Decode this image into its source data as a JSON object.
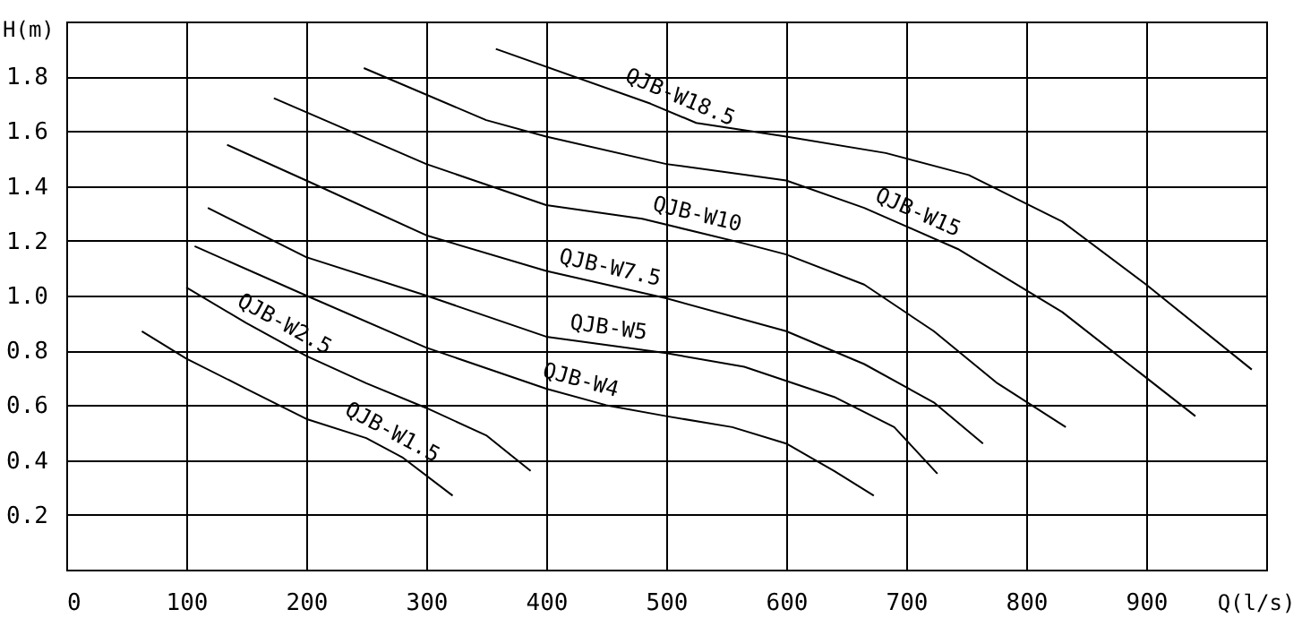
{
  "chart_data": {
    "type": "line",
    "xlabel": "Q(l/s)",
    "ylabel": "H(m)",
    "xlim": [
      0,
      1000
    ],
    "xticks": [
      0,
      100,
      200,
      300,
      400,
      500,
      600,
      700,
      800,
      900
    ],
    "ylim": [
      0,
      2
    ],
    "yticks": [
      0.2,
      0.4,
      0.6,
      0.8,
      {
        "value": 1,
        "label": "1.0"
      },
      1.2,
      1.4,
      1.6,
      1.8
    ],
    "grid": true,
    "marker": "none",
    "line_style": "solid",
    "series": [
      {
        "name": "QJB-W1.5",
        "color": "#000000",
        "x": [
          63,
          100,
          150,
          200,
          250,
          280,
          322
        ],
        "values": [
          0.87,
          0.77,
          0.66,
          0.55,
          0.48,
          0.41,
          0.27
        ]
      },
      {
        "name": "QJB-W2.5",
        "color": "#000000",
        "x": [
          100,
          150,
          200,
          250,
          300,
          350,
          387
        ],
        "values": [
          1.03,
          0.9,
          0.78,
          0.68,
          0.59,
          0.49,
          0.36
        ]
      },
      {
        "name": "QJB-W4",
        "color": "#000000",
        "x": [
          107,
          200,
          300,
          400,
          450,
          500,
          555,
          600,
          640,
          673
        ],
        "values": [
          1.18,
          1.0,
          0.81,
          0.66,
          0.6,
          0.56,
          0.52,
          0.46,
          0.36,
          0.27
        ]
      },
      {
        "name": "QJB-W5",
        "color": "#000000",
        "x": [
          118,
          200,
          300,
          400,
          500,
          565,
          640,
          690,
          726
        ],
        "values": [
          1.32,
          1.14,
          1.0,
          0.85,
          0.79,
          0.74,
          0.63,
          0.52,
          0.35
        ]
      },
      {
        "name": "QJB-W7.5",
        "color": "#000000",
        "x": [
          134,
          200,
          300,
          400,
          500,
          600,
          665,
          723,
          764
        ],
        "values": [
          1.55,
          1.42,
          1.22,
          1.09,
          0.99,
          0.87,
          0.75,
          0.61,
          0.46
        ]
      },
      {
        "name": "QJB-W10",
        "color": "#000000",
        "x": [
          173,
          300,
          400,
          480,
          565,
          600,
          665,
          723,
          776,
          833
        ],
        "values": [
          1.72,
          1.48,
          1.33,
          1.28,
          1.19,
          1.15,
          1.04,
          0.87,
          0.68,
          0.52
        ]
      },
      {
        "name": "QJB-W15",
        "color": "#000000",
        "x": [
          248,
          350,
          400,
          500,
          600,
          665,
          743,
          830,
          941
        ],
        "values": [
          1.83,
          1.64,
          1.58,
          1.48,
          1.42,
          1.32,
          1.17,
          0.94,
          0.56
        ]
      },
      {
        "name": "QJB-W18.5",
        "color": "#000000",
        "x": [
          358,
          487,
          525,
          600,
          683,
          752,
          830,
          900,
          988
        ],
        "values": [
          1.9,
          1.7,
          1.63,
          1.58,
          1.52,
          1.44,
          1.27,
          1.04,
          0.73
        ]
      }
    ]
  }
}
